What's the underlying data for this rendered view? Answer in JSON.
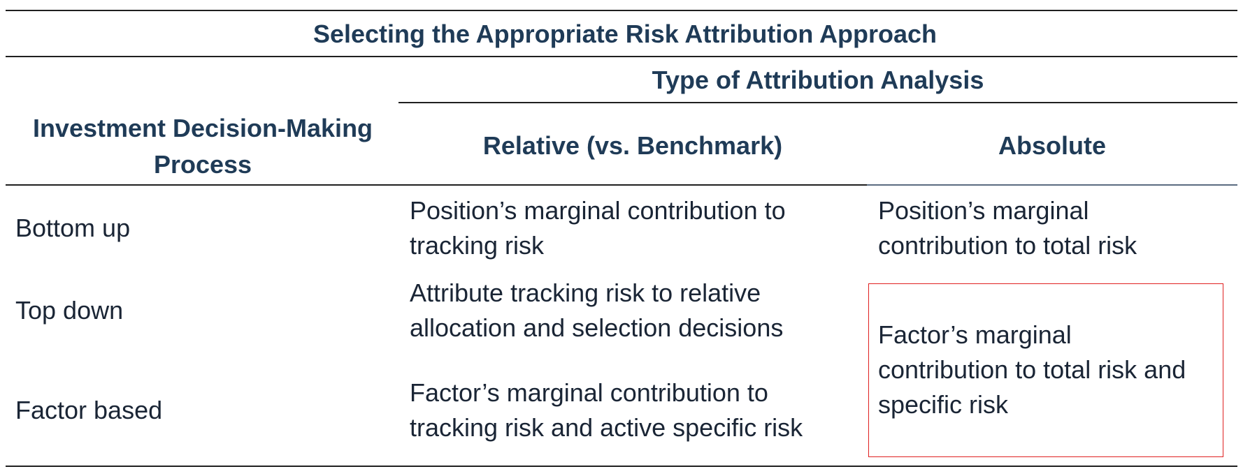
{
  "table": {
    "title": "Selecting the Appropriate Risk Attribution Approach",
    "row_header": "Investment Decision-Making Process",
    "group_header": "Type of Attribution Analysis",
    "col_relative": "Relative (vs. Benchmark)",
    "col_absolute": "Absolute",
    "rows": [
      {
        "label": "Bottom up",
        "relative": [
          "Position’s marginal contribution to",
          "tracking risk"
        ],
        "absolute": [
          "Position’s marginal",
          "contribution to total risk"
        ]
      },
      {
        "label": "Top down",
        "relative": [
          "Attribute tracking risk to relative",
          "allocation and selection decisions"
        ]
      },
      {
        "label": "Factor based",
        "relative": [
          "Factor’s marginal contribution to",
          "tracking risk and active specific risk"
        ]
      }
    ],
    "merged_absolute": [
      "Factor’s marginal",
      "contribution to total risk and",
      "specific risk"
    ],
    "highlight_color": "#e02020"
  }
}
